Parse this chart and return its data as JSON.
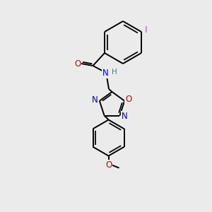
{
  "bg_color": "#ebebeb",
  "bond_color": "#000000",
  "bond_width": 1.4,
  "atom_colors": {
    "C": "#000000",
    "N": "#0000cc",
    "O": "#cc0000",
    "H": "#2e8b8b",
    "I": "#cc44cc"
  },
  "font_size_atom": 8.5,
  "font_size_H": 7.5,
  "font_size_I": 9.0,
  "font_size_label": 7.5
}
